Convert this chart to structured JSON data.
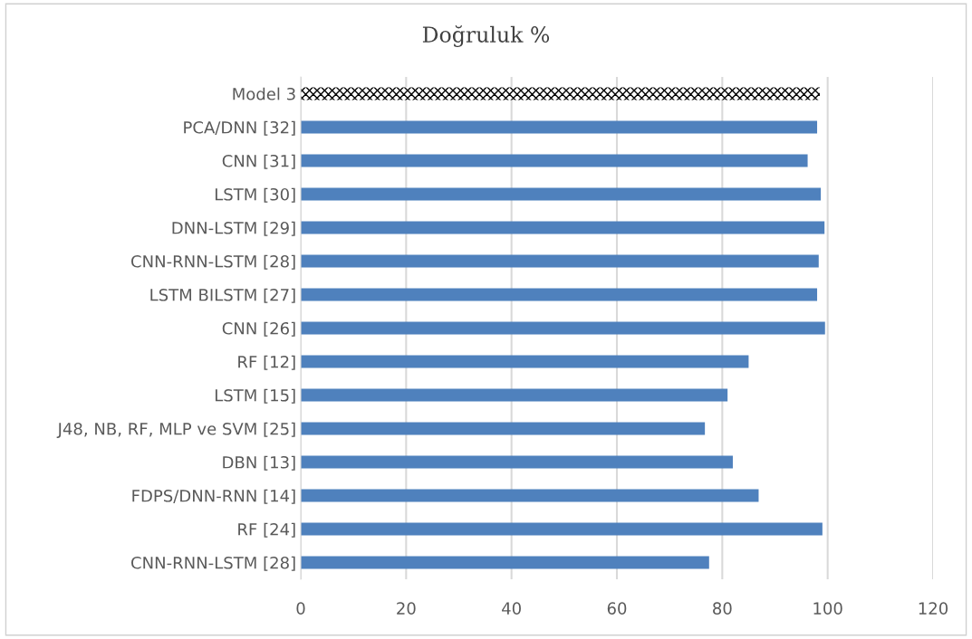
{
  "chart_data": {
    "type": "bar",
    "orientation": "horizontal",
    "title": "Doğruluk %",
    "categories": [
      "Model 3",
      "PCA/DNN [32]",
      "CNN [31]",
      "LSTM [30]",
      "DNN-LSTM [29]",
      "CNN-RNN-LSTM [28]",
      "LSTM BILSTM [27]",
      "CNN [26]",
      "RF [12]",
      "LSTM [15]",
      "J48, NB, RF, MLP ve SVM [25]",
      "DBN [13]",
      "FDPS/DNN-RNN [14]",
      "RF [24]",
      "CNN-RNN-LSTM [28]"
    ],
    "values": [
      98.5,
      98.0,
      96.2,
      98.7,
      99.4,
      98.3,
      98.0,
      99.5,
      85.0,
      81.0,
      76.7,
      82.0,
      86.9,
      99.0,
      77.5
    ],
    "colors": [
      "#000000",
      "#4f81bd",
      "#4f81bd",
      "#4f81bd",
      "#4f81bd",
      "#4f81bd",
      "#4f81bd",
      "#4f81bd",
      "#4f81bd",
      "#4f81bd",
      "#4f81bd",
      "#4f81bd",
      "#4f81bd",
      "#4f81bd",
      "#4f81bd"
    ],
    "xlim": [
      0,
      120
    ],
    "xticks": [
      0,
      20,
      40,
      60,
      80,
      100,
      120
    ],
    "grid": "x"
  }
}
